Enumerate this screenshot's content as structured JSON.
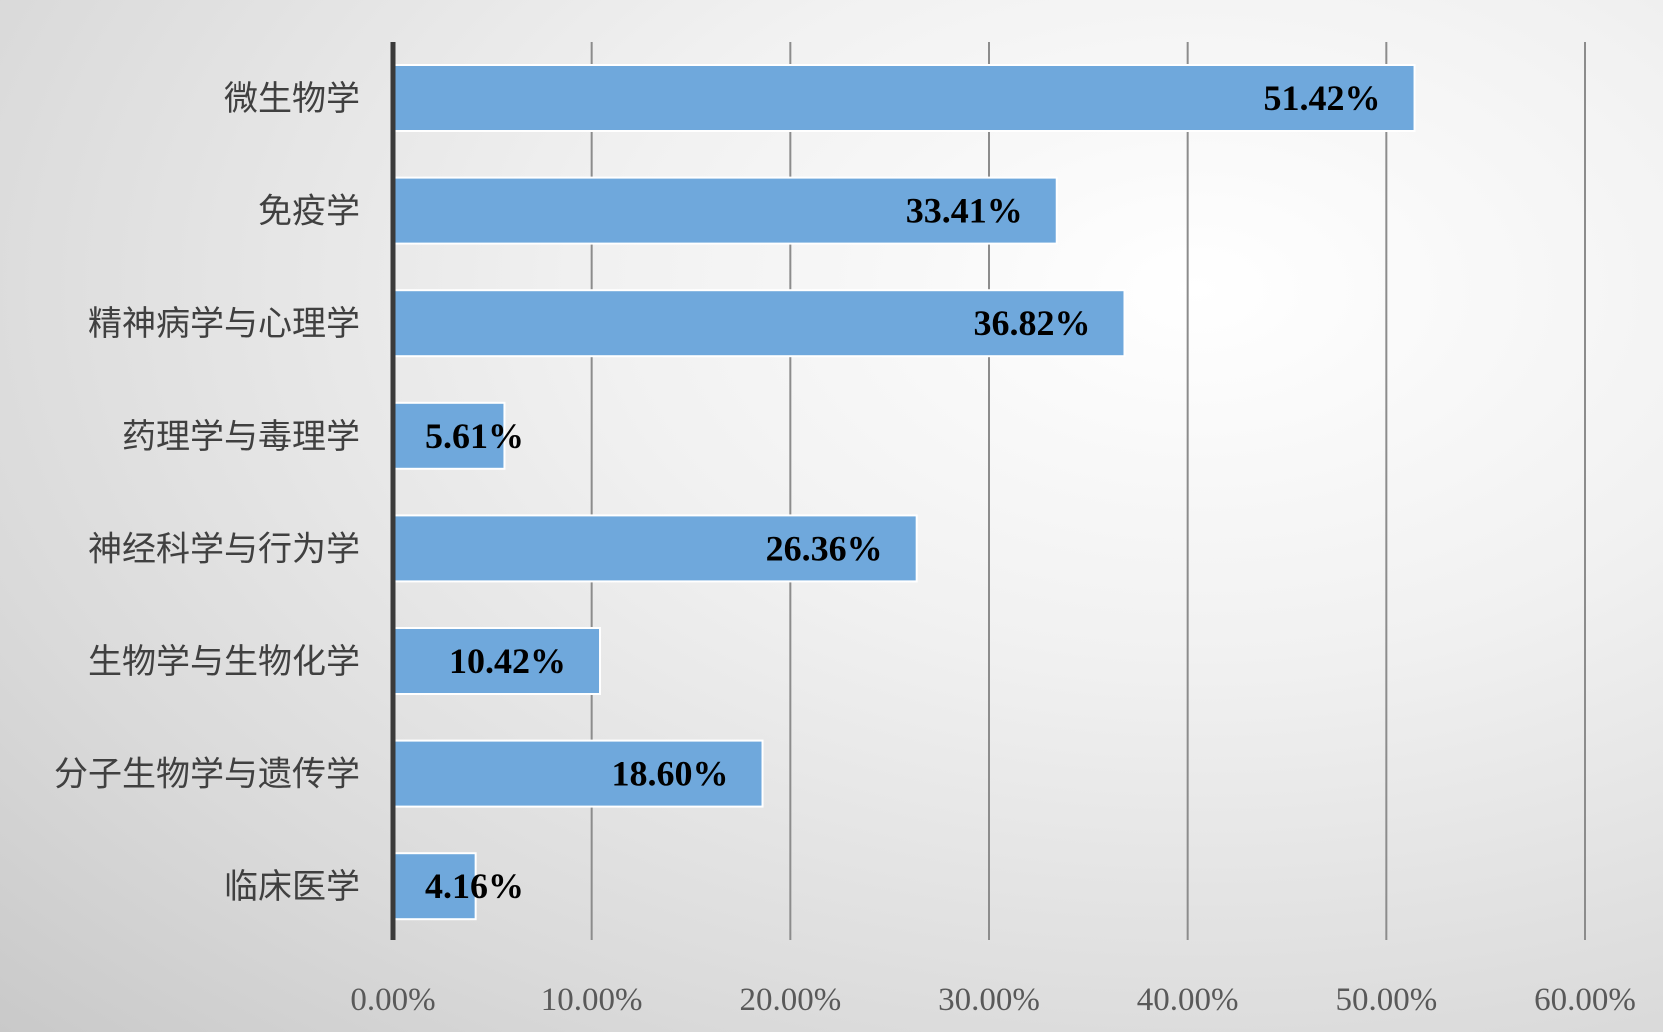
{
  "chart_data": {
    "type": "bar",
    "orientation": "horizontal",
    "categories": [
      "微生物学",
      "免疫学",
      "精神病学与心理学",
      "药理学与毒理学",
      "神经科学与行为学",
      "生物学与生物化学",
      "分子生物学与遗传学",
      "临床医学"
    ],
    "values": [
      51.42,
      33.41,
      36.82,
      5.61,
      26.36,
      10.42,
      18.6,
      4.16
    ],
    "value_labels": [
      "51.42%",
      "33.41%",
      "36.82%",
      "5.61%",
      "26.36%",
      "10.42%",
      "18.60%",
      "4.16%"
    ],
    "xlim": [
      0,
      60
    ],
    "xticks": [
      0,
      10,
      20,
      30,
      40,
      50,
      60
    ],
    "xtick_labels": [
      "0.00%",
      "10.00%",
      "20.00%",
      "30.00%",
      "40.00%",
      "50.00%",
      "60.00%"
    ],
    "grid": true,
    "legend": "none",
    "colors": {
      "bar": "#6fa8dc",
      "bar_edge": "#ffffff",
      "grid": "#8c8c8c",
      "axis": "#3a3a3a"
    }
  }
}
